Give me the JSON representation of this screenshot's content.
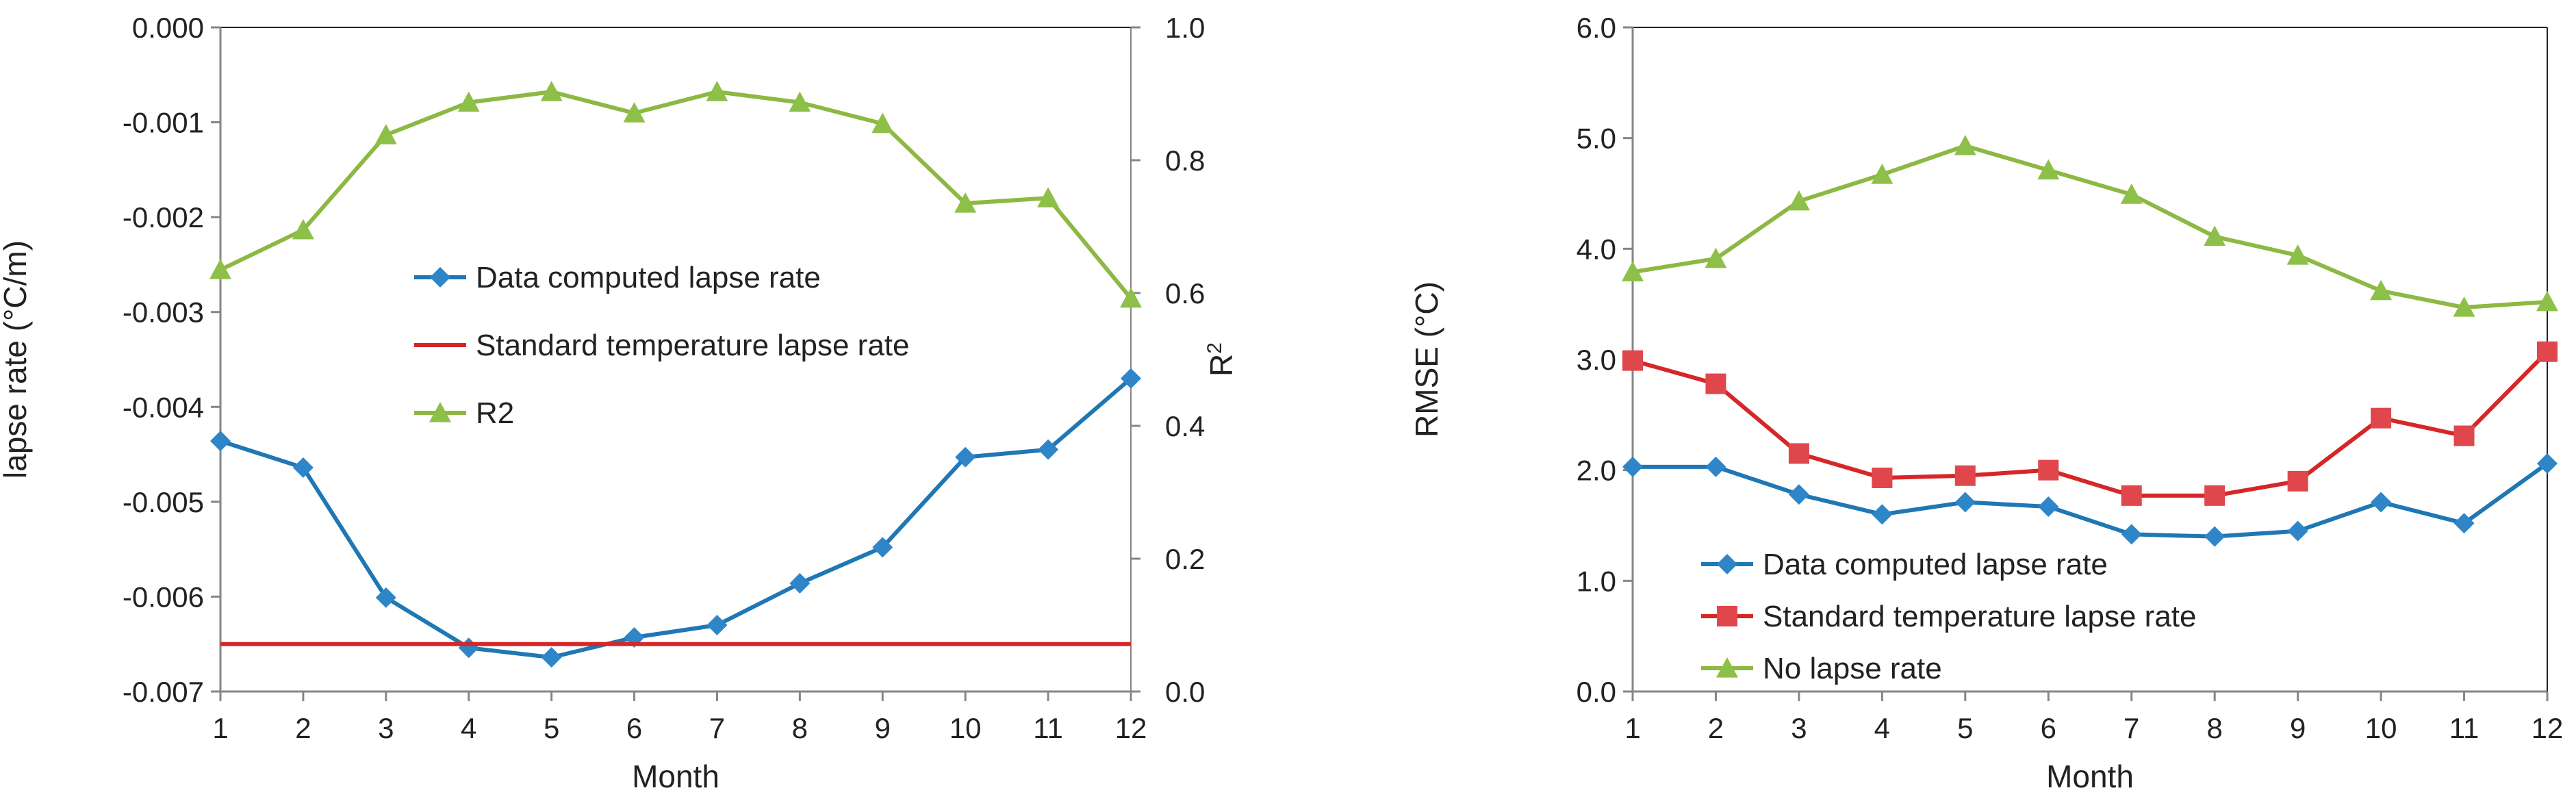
{
  "colors": {
    "blue": "#1F77B4",
    "red": "#D62728",
    "green": "#8DB843",
    "marker_blue": "#2E86C8",
    "marker_red": "#E0474C",
    "marker_green": "#8DC049",
    "axis": "#868686",
    "frame": "#222222"
  },
  "chart_data": [
    {
      "type": "line",
      "name": "lapse-rate-and-r2",
      "categories": [
        "1",
        "2",
        "3",
        "4",
        "5",
        "6",
        "7",
        "8",
        "9",
        "10",
        "11",
        "12"
      ],
      "xlabel": "Month",
      "ylabel": "lapse rate (°C/m)",
      "ylabel_right_main": "R",
      "ylabel_right_sup": "2",
      "ylim": [
        -0.007,
        0.0
      ],
      "yticks": [
        0.0,
        -0.001,
        -0.002,
        -0.003,
        -0.004,
        -0.005,
        -0.006,
        -0.007
      ],
      "ytick_labels": [
        "0.000",
        "-0.001",
        "-0.002",
        "-0.003",
        "-0.004",
        "-0.005",
        "-0.006",
        "-0.007"
      ],
      "y2lim": [
        0.0,
        1.0
      ],
      "y2ticks": [
        1.0,
        0.8,
        0.6,
        0.4,
        0.2,
        0.0
      ],
      "y2tick_labels": [
        "1.0",
        "0.8",
        "0.6",
        "0.4",
        "0.2",
        "0.0"
      ],
      "legend_position": "center",
      "series": [
        {
          "name": "Data computed lapse rate",
          "axis": "left",
          "marker": "diamond",
          "color_key": "blue",
          "marker_key": "marker_blue",
          "values": [
            -0.00436,
            -0.00464,
            -0.00601,
            -0.00654,
            -0.00664,
            -0.00643,
            -0.0063,
            -0.00586,
            -0.00548,
            -0.00453,
            -0.00445,
            -0.0037
          ]
        },
        {
          "name": "Standard temperature lapse rate",
          "axis": "left",
          "marker": "none",
          "color_key": "red",
          "marker_key": "marker_red",
          "values": [
            -0.0065,
            -0.0065,
            -0.0065,
            -0.0065,
            -0.0065,
            -0.0065,
            -0.0065,
            -0.0065,
            -0.0065,
            -0.0065,
            -0.0065,
            -0.0065
          ],
          "span": "full"
        },
        {
          "name": "R2",
          "axis": "right",
          "marker": "triangle",
          "color_key": "green",
          "marker_key": "marker_green",
          "values": [
            0.635,
            0.695,
            0.838,
            0.887,
            0.903,
            0.871,
            0.903,
            0.887,
            0.855,
            0.735,
            0.743,
            0.592
          ]
        }
      ]
    },
    {
      "type": "line",
      "name": "rmse",
      "categories": [
        "1",
        "2",
        "3",
        "4",
        "5",
        "6",
        "7",
        "8",
        "9",
        "10",
        "11",
        "12"
      ],
      "xlabel": "Month",
      "ylabel": "RMSE (°C)",
      "ylim": [
        0.0,
        6.0
      ],
      "yticks": [
        6.0,
        5.0,
        4.0,
        3.0,
        2.0,
        1.0,
        0.0
      ],
      "ytick_labels": [
        "6.0",
        "5.0",
        "4.0",
        "3.0",
        "2.0",
        "1.0",
        "0.0"
      ],
      "legend_position": "bottom-left",
      "series": [
        {
          "name": "Data computed lapse rate",
          "marker": "diamond",
          "color_key": "blue",
          "marker_key": "marker_blue",
          "values": [
            2.03,
            2.03,
            1.78,
            1.6,
            1.71,
            1.67,
            1.42,
            1.4,
            1.45,
            1.71,
            1.52,
            2.06
          ]
        },
        {
          "name": "Standard temperature lapse rate",
          "marker": "square",
          "color_key": "red",
          "marker_key": "marker_red",
          "values": [
            2.99,
            2.78,
            2.15,
            1.93,
            1.95,
            2.0,
            1.77,
            1.77,
            1.9,
            2.47,
            2.31,
            3.07
          ]
        },
        {
          "name": "No lapse rate",
          "marker": "triangle",
          "color_key": "green",
          "marker_key": "marker_green",
          "values": [
            3.79,
            3.91,
            4.43,
            4.67,
            4.93,
            4.71,
            4.49,
            4.11,
            3.94,
            3.62,
            3.47,
            3.52
          ]
        }
      ]
    }
  ]
}
